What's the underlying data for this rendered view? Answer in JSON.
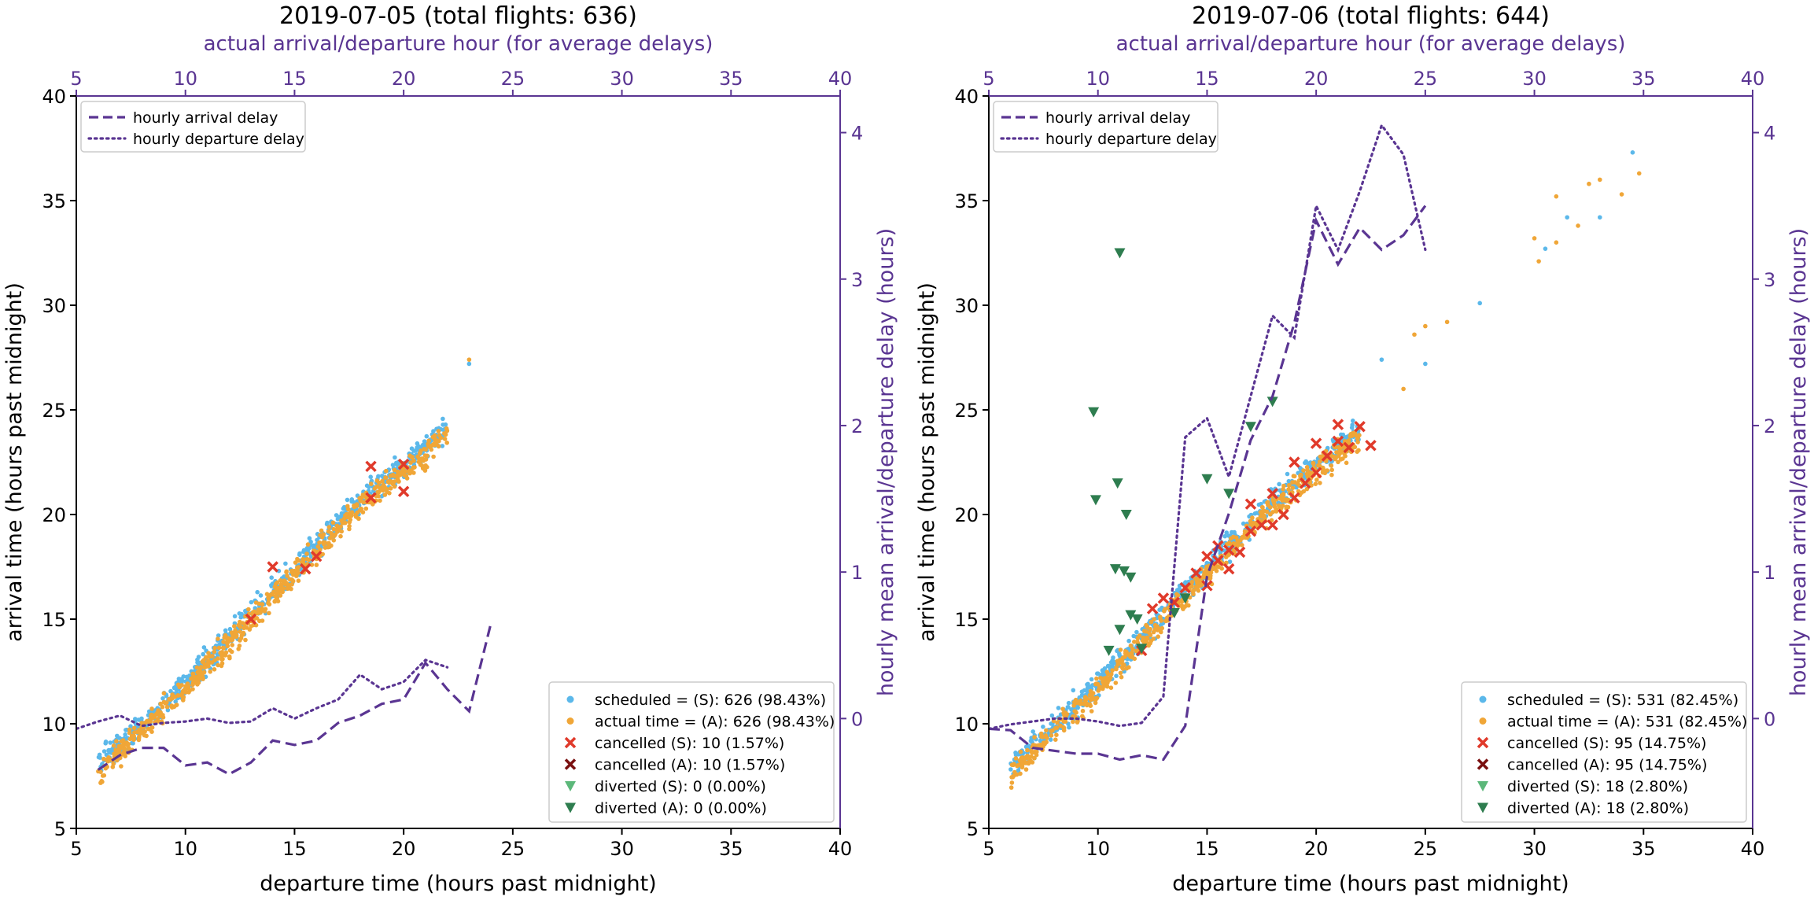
{
  "colors": {
    "scheduled": "#5bb8ea",
    "actual": "#f0a637",
    "cancelled_s": "#e03a2b",
    "cancelled_a": "#7a1010",
    "diverted_s": "#5cb87a",
    "diverted_a": "#2e7d4f",
    "delay": "#5a3592",
    "axis": "#000000"
  },
  "chart_data": [
    {
      "type": "scatter",
      "title": "2019-07-05 (total flights: 636)",
      "xlabel": "departure time (hours past midnight)",
      "ylabel": "arrival time (hours past midnight)",
      "top_xlabel": "actual arrival/departure hour (for average delays)",
      "right_ylabel": "hourly mean arrival/departure delay (hours)",
      "xlim": [
        5,
        40
      ],
      "ylim": [
        5,
        40
      ],
      "right_ylim": [
        -0.75,
        4.25
      ],
      "xticks": [
        5,
        10,
        15,
        20,
        25,
        30,
        35,
        40
      ],
      "yticks": [
        5,
        10,
        15,
        20,
        25,
        30,
        35,
        40
      ],
      "right_yticks": [
        0,
        1,
        2,
        3,
        4
      ],
      "scatter_trend": [
        [
          6,
          7.8
        ],
        [
          10,
          11.8
        ],
        [
          14,
          16.2
        ],
        [
          18,
          20.5
        ],
        [
          22,
          23.9
        ]
      ],
      "scatter_outliers": [
        [
          23,
          27.2
        ],
        [
          23,
          27.4
        ]
      ],
      "cancelled": [
        [
          13,
          15
        ],
        [
          14,
          17.5
        ],
        [
          15.5,
          17.4
        ],
        [
          16,
          18
        ],
        [
          18.5,
          20.8
        ],
        [
          18.5,
          22.3
        ],
        [
          20,
          21.1
        ],
        [
          20,
          22.4
        ]
      ],
      "diverted": [],
      "delay_lines": [
        {
          "name": "hourly arrival delay",
          "style": "dashed",
          "x": [
            6,
            7,
            8,
            9,
            10,
            11,
            12,
            13,
            14,
            15,
            16,
            17,
            18,
            19,
            20,
            21,
            22,
            23,
            24
          ],
          "y": [
            -0.35,
            -0.25,
            -0.2,
            -0.2,
            -0.32,
            -0.3,
            -0.38,
            -0.3,
            -0.15,
            -0.18,
            -0.15,
            -0.03,
            0.02,
            0.1,
            0.13,
            0.38,
            0.2,
            0.05,
            0.65
          ]
        },
        {
          "name": "hourly departure delay",
          "style": "dotted",
          "x": [
            5,
            6,
            7,
            8,
            9,
            10,
            11,
            12,
            13,
            14,
            15,
            16,
            17,
            18,
            19,
            20,
            21,
            22
          ],
          "y": [
            -0.07,
            -0.02,
            0.02,
            -0.05,
            -0.03,
            -0.02,
            0.0,
            -0.03,
            -0.02,
            0.07,
            0.0,
            0.07,
            0.13,
            0.3,
            0.2,
            0.25,
            0.4,
            0.35
          ]
        }
      ],
      "legend_top": [
        "hourly arrival delay",
        "hourly departure delay"
      ],
      "legend_bottom": [
        "scheduled = (S): 626 (98.43%)",
        "actual time = (A): 626 (98.43%)",
        "cancelled (S): 10 (1.57%)",
        "cancelled (A): 10 (1.57%)",
        "diverted (S): 0 (0.00%)",
        "diverted (A): 0 (0.00%)"
      ]
    },
    {
      "type": "scatter",
      "title": "2019-07-06 (total flights: 644)",
      "xlabel": "departure time (hours past midnight)",
      "ylabel": "arrival time (hours past midnight)",
      "top_xlabel": "actual arrival/departure hour (for average delays)",
      "right_ylabel": "hourly mean arrival/departure delay (hours)",
      "xlim": [
        5,
        40
      ],
      "ylim": [
        5,
        40
      ],
      "right_ylim": [
        -0.75,
        4.25
      ],
      "xticks": [
        5,
        10,
        15,
        20,
        25,
        30,
        35,
        40
      ],
      "yticks": [
        5,
        10,
        15,
        20,
        25,
        30,
        35,
        40
      ],
      "right_yticks": [
        0,
        1,
        2,
        3,
        4
      ],
      "scatter_trend": [
        [
          6,
          7.8
        ],
        [
          10,
          11.8
        ],
        [
          14,
          16.2
        ],
        [
          18,
          20.5
        ],
        [
          22,
          23.9
        ]
      ],
      "scatter_outliers": [
        [
          23,
          27.4
        ],
        [
          24,
          26
        ],
        [
          24.5,
          28.6
        ],
        [
          25,
          27.2
        ],
        [
          25,
          29
        ],
        [
          26,
          29.2
        ],
        [
          27.5,
          30.1
        ],
        [
          30,
          33.2
        ],
        [
          30.2,
          32.1
        ],
        [
          30.5,
          32.7
        ],
        [
          31,
          33
        ],
        [
          31,
          35.2
        ],
        [
          31.5,
          34.2
        ],
        [
          32,
          33.8
        ],
        [
          32.5,
          35.8
        ],
        [
          33,
          34.2
        ],
        [
          33,
          36
        ],
        [
          34,
          35.3
        ],
        [
          34.5,
          37.3
        ],
        [
          34.8,
          36.3
        ]
      ],
      "cancelled": [
        [
          12,
          13.5
        ],
        [
          12.5,
          15.5
        ],
        [
          13,
          16
        ],
        [
          13.5,
          15.8
        ],
        [
          14,
          16.5
        ],
        [
          14.5,
          17.2
        ],
        [
          15,
          16.6
        ],
        [
          15,
          18
        ],
        [
          15.5,
          17.8
        ],
        [
          15.5,
          18.5
        ],
        [
          16,
          17.4
        ],
        [
          16,
          18.3
        ],
        [
          16.5,
          18.2
        ],
        [
          17,
          19.2
        ],
        [
          17,
          20.5
        ],
        [
          17.5,
          19.5
        ],
        [
          18,
          19.5
        ],
        [
          18,
          21
        ],
        [
          18.5,
          20
        ],
        [
          19,
          20.8
        ],
        [
          19,
          22.5
        ],
        [
          19.5,
          21.5
        ],
        [
          20,
          22
        ],
        [
          20,
          23.4
        ],
        [
          20.5,
          22.8
        ],
        [
          21,
          23.5
        ],
        [
          21,
          24.3
        ],
        [
          21.5,
          23.2
        ],
        [
          22,
          24.2
        ],
        [
          22.5,
          23.3
        ]
      ],
      "diverted": [
        [
          9.8,
          24.9
        ],
        [
          9.9,
          20.7
        ],
        [
          10.5,
          13.5
        ],
        [
          10.8,
          17.4
        ],
        [
          10.9,
          21.5
        ],
        [
          11,
          14.5
        ],
        [
          11,
          32.5
        ],
        [
          11.2,
          17.3
        ],
        [
          11.3,
          20
        ],
        [
          11.5,
          15.2
        ],
        [
          11.5,
          17
        ],
        [
          11.8,
          15
        ],
        [
          12,
          13.6
        ],
        [
          13.5,
          15.3
        ],
        [
          14,
          16
        ],
        [
          15,
          21.7
        ],
        [
          16,
          21
        ],
        [
          17,
          24.2
        ],
        [
          18,
          25.4
        ]
      ],
      "delay_lines": [
        {
          "name": "hourly arrival delay",
          "style": "dashed",
          "x": [
            5,
            6,
            7,
            8,
            9,
            10,
            11,
            12,
            13,
            14,
            15,
            16,
            17,
            18,
            19,
            20,
            21,
            22,
            23,
            24,
            25
          ],
          "y": [
            -0.07,
            -0.08,
            -0.2,
            -0.22,
            -0.24,
            -0.24,
            -0.28,
            -0.25,
            -0.28,
            -0.05,
            0.97,
            1.4,
            1.9,
            2.2,
            2.7,
            3.4,
            3.1,
            3.35,
            3.2,
            3.3,
            3.5
          ]
        },
        {
          "name": "hourly departure delay",
          "style": "dotted",
          "x": [
            5,
            6,
            7,
            8,
            9,
            10,
            11,
            12,
            13,
            14,
            15,
            16,
            17,
            18,
            19,
            20,
            21,
            22,
            23,
            24,
            25
          ],
          "y": [
            -0.07,
            -0.04,
            -0.02,
            0.0,
            0.0,
            -0.02,
            -0.05,
            -0.03,
            0.15,
            1.92,
            2.05,
            1.65,
            2.2,
            2.75,
            2.6,
            3.5,
            3.2,
            3.6,
            4.05,
            3.85,
            3.2
          ]
        }
      ],
      "legend_top": [
        "hourly arrival delay",
        "hourly departure delay"
      ],
      "legend_bottom": [
        "scheduled = (S): 531 (82.45%)",
        "actual time = (A): 531 (82.45%)",
        "cancelled (S): 95 (14.75%)",
        "cancelled (A): 95 (14.75%)",
        "diverted (S): 18 (2.80%)",
        "diverted (A): 18 (2.80%)"
      ]
    }
  ]
}
